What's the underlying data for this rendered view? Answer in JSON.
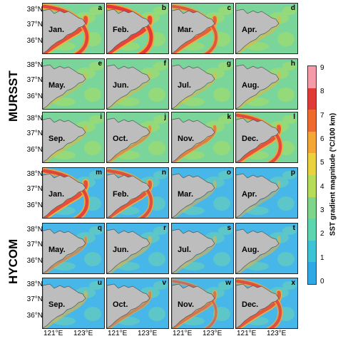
{
  "datasets": [
    {
      "name": "MURSST"
    },
    {
      "name": "HYCOM"
    }
  ],
  "lat_ticks": [
    "38°N",
    "37°N",
    "36°N"
  ],
  "lon_ticks": [
    "121°E",
    "123°E"
  ],
  "colorbar": {
    "label": "SST gradient magnitude (°C/100 km)",
    "ticks": [
      "0",
      "1",
      "2",
      "3",
      "4",
      "5",
      "6",
      "7",
      "8",
      "9"
    ],
    "min": 0,
    "max": 9,
    "colors": [
      "#2fa9e6",
      "#3cc3d6",
      "#5dd6b0",
      "#7fd58a",
      "#b6dc5a",
      "#e9d23e",
      "#f4a734",
      "#ee6a2e",
      "#e03a37",
      "#f59aa8"
    ]
  },
  "panels": [
    {
      "letter": "a",
      "month": "Jan.",
      "set": "MURSST",
      "intensity": 0.9
    },
    {
      "letter": "b",
      "month": "Feb.",
      "set": "MURSST",
      "intensity": 1.0
    },
    {
      "letter": "c",
      "month": "Mar.",
      "set": "MURSST",
      "intensity": 0.75
    },
    {
      "letter": "d",
      "month": "Apr.",
      "set": "MURSST",
      "intensity": 0.25
    },
    {
      "letter": "e",
      "month": "May.",
      "set": "MURSST",
      "intensity": 0.1
    },
    {
      "letter": "f",
      "month": "Jun.",
      "set": "MURSST",
      "intensity": 0.15
    },
    {
      "letter": "g",
      "month": "Jul.",
      "set": "MURSST",
      "intensity": 0.15
    },
    {
      "letter": "h",
      "month": "Aug.",
      "set": "MURSST",
      "intensity": 0.2
    },
    {
      "letter": "i",
      "month": "Sep.",
      "set": "MURSST",
      "intensity": 0.2
    },
    {
      "letter": "j",
      "month": "Oct.",
      "set": "MURSST",
      "intensity": 0.35
    },
    {
      "letter": "k",
      "month": "Nov.",
      "set": "MURSST",
      "intensity": 0.5
    },
    {
      "letter": "l",
      "month": "Dec.",
      "set": "MURSST",
      "intensity": 0.85
    },
    {
      "letter": "m",
      "month": "Jan.",
      "set": "HYCOM",
      "intensity": 0.9
    },
    {
      "letter": "n",
      "month": "Feb.",
      "set": "HYCOM",
      "intensity": 0.8
    },
    {
      "letter": "o",
      "month": "Mar.",
      "set": "HYCOM",
      "intensity": 0.2
    },
    {
      "letter": "p",
      "month": "Apr.",
      "set": "HYCOM",
      "intensity": 0.15
    },
    {
      "letter": "q",
      "month": "May.",
      "set": "HYCOM",
      "intensity": 0.35
    },
    {
      "letter": "r",
      "month": "Jun.",
      "set": "HYCOM",
      "intensity": 0.3
    },
    {
      "letter": "s",
      "month": "Jul.",
      "set": "HYCOM",
      "intensity": 0.25
    },
    {
      "letter": "t",
      "month": "Aug.",
      "set": "HYCOM",
      "intensity": 0.25
    },
    {
      "letter": "u",
      "month": "Sep.",
      "set": "HYCOM",
      "intensity": 0.3
    },
    {
      "letter": "v",
      "month": "Oct.",
      "set": "HYCOM",
      "intensity": 0.4
    },
    {
      "letter": "w",
      "month": "Nov.",
      "set": "HYCOM",
      "intensity": 0.55
    },
    {
      "letter": "x",
      "month": "Dec.",
      "set": "HYCOM",
      "intensity": 0.8
    }
  ]
}
